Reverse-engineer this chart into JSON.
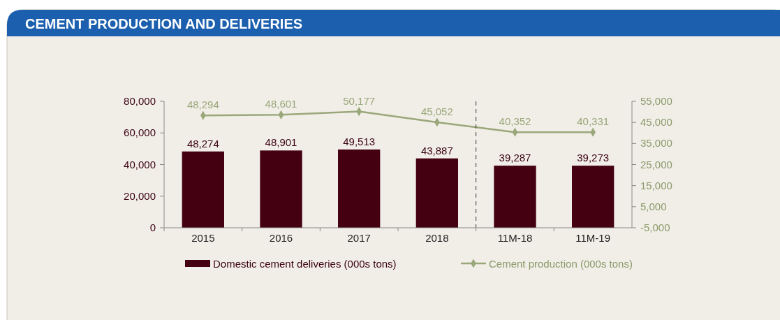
{
  "chart_data": {
    "type": "bar",
    "title": "CEMENT PRODUCTION AND DELIVERIES",
    "categories": [
      "2015",
      "2016",
      "2017",
      "2018",
      "11M-18",
      "11M-19"
    ],
    "series": [
      {
        "name": "Domestic cement deliveries (000s tons)",
        "color": "#440010",
        "values": [
          48274,
          48901,
          49513,
          43887,
          39287,
          39273
        ],
        "value_labels": [
          "48,274",
          "48,901",
          "49,513",
          "43,887",
          "39,287",
          "39,273"
        ]
      },
      {
        "name": "Cement production (000s tons)",
        "type": "line",
        "axis": "y2",
        "color": "#9aa77a",
        "values": [
          48294,
          48601,
          50177,
          45052,
          40352,
          40331
        ],
        "value_labels": [
          "48,294",
          "48,601",
          "50,177",
          "45,052",
          "40,352",
          "40,331"
        ]
      }
    ],
    "ylim": [
      0,
      80000
    ],
    "yticks": [
      {
        "value": 0,
        "label": "0"
      },
      {
        "value": 20000,
        "label": "20,000"
      },
      {
        "value": 40000,
        "label": "40,000"
      },
      {
        "value": 60000,
        "label": "60,000"
      },
      {
        "value": 80000,
        "label": "80,000"
      }
    ],
    "y2lim": [
      -5000,
      55000
    ],
    "y2ticks": [
      {
        "value": -5000,
        "label": "-5,000"
      },
      {
        "value": 5000,
        "label": "5,000"
      },
      {
        "value": 15000,
        "label": "15,000"
      },
      {
        "value": 25000,
        "label": "25,000"
      },
      {
        "value": 35000,
        "label": "35,000"
      },
      {
        "value": 45000,
        "label": "45,000"
      },
      {
        "value": 55000,
        "label": "55,000"
      }
    ],
    "marker": "diamond",
    "legend": "bottom"
  }
}
